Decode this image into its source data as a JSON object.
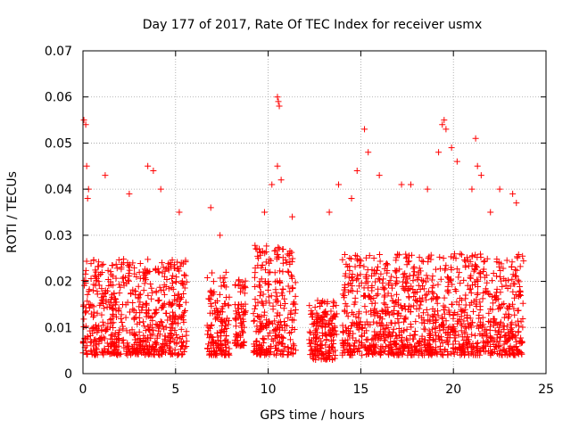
{
  "chart_data": {
    "type": "scatter",
    "title": "Day 177 of 2017, Rate Of TEC Index for receiver usmx",
    "xlabel": "GPS time / hours",
    "ylabel": "ROTI / TECUs",
    "xlim": [
      0,
      25
    ],
    "ylim": [
      0,
      0.07
    ],
    "x_ticks": [
      0,
      5,
      10,
      15,
      20,
      25
    ],
    "y_ticks": [
      0,
      0.01,
      0.02,
      0.03,
      0.04,
      0.05,
      0.06,
      0.07
    ],
    "x_tick_labels": [
      "0",
      "5",
      "10",
      "15",
      "20",
      "25"
    ],
    "y_tick_labels": [
      "0",
      "0.01",
      "0.02",
      "0.03",
      "0.04",
      "0.05",
      "0.06",
      "0.07"
    ],
    "grid": true,
    "marker": "plus",
    "marker_color": "#ff0000",
    "data_segments": [
      {
        "x_start": 0.0,
        "x_end": 5.6,
        "y_min": 0.004,
        "y_max": 0.025
      },
      {
        "x_start": 6.7,
        "x_end": 7.9,
        "y_min": 0.004,
        "y_max": 0.022
      },
      {
        "x_start": 8.2,
        "x_end": 8.8,
        "y_min": 0.006,
        "y_max": 0.021
      },
      {
        "x_start": 9.2,
        "x_end": 11.5,
        "y_min": 0.004,
        "y_max": 0.028
      },
      {
        "x_start": 12.2,
        "x_end": 13.7,
        "y_min": 0.003,
        "y_max": 0.016
      },
      {
        "x_start": 14.0,
        "x_end": 23.8,
        "y_min": 0.004,
        "y_max": 0.026
      }
    ],
    "notable_points": [
      {
        "x": 0.05,
        "y": 0.055
      },
      {
        "x": 0.15,
        "y": 0.054
      },
      {
        "x": 0.2,
        "y": 0.045
      },
      {
        "x": 0.3,
        "y": 0.04
      },
      {
        "x": 0.25,
        "y": 0.038
      },
      {
        "x": 1.2,
        "y": 0.043
      },
      {
        "x": 2.5,
        "y": 0.039
      },
      {
        "x": 3.5,
        "y": 0.045
      },
      {
        "x": 3.8,
        "y": 0.044
      },
      {
        "x": 4.2,
        "y": 0.04
      },
      {
        "x": 5.2,
        "y": 0.035
      },
      {
        "x": 6.9,
        "y": 0.036
      },
      {
        "x": 7.4,
        "y": 0.03
      },
      {
        "x": 9.8,
        "y": 0.035
      },
      {
        "x": 10.2,
        "y": 0.041
      },
      {
        "x": 10.5,
        "y": 0.06
      },
      {
        "x": 10.55,
        "y": 0.059
      },
      {
        "x": 10.6,
        "y": 0.058
      },
      {
        "x": 10.5,
        "y": 0.045
      },
      {
        "x": 10.7,
        "y": 0.042
      },
      {
        "x": 11.3,
        "y": 0.034
      },
      {
        "x": 13.3,
        "y": 0.035
      },
      {
        "x": 13.8,
        "y": 0.041
      },
      {
        "x": 14.5,
        "y": 0.038
      },
      {
        "x": 14.8,
        "y": 0.044
      },
      {
        "x": 15.2,
        "y": 0.053
      },
      {
        "x": 15.4,
        "y": 0.048
      },
      {
        "x": 16.0,
        "y": 0.043
      },
      {
        "x": 17.2,
        "y": 0.041
      },
      {
        "x": 17.7,
        "y": 0.041
      },
      {
        "x": 18.6,
        "y": 0.04
      },
      {
        "x": 19.2,
        "y": 0.048
      },
      {
        "x": 19.4,
        "y": 0.054
      },
      {
        "x": 19.5,
        "y": 0.055
      },
      {
        "x": 19.6,
        "y": 0.053
      },
      {
        "x": 19.9,
        "y": 0.049
      },
      {
        "x": 20.2,
        "y": 0.046
      },
      {
        "x": 21.0,
        "y": 0.04
      },
      {
        "x": 21.2,
        "y": 0.051
      },
      {
        "x": 21.3,
        "y": 0.045
      },
      {
        "x": 21.5,
        "y": 0.043
      },
      {
        "x": 22.0,
        "y": 0.035
      },
      {
        "x": 22.5,
        "y": 0.04
      },
      {
        "x": 23.2,
        "y": 0.039
      },
      {
        "x": 23.4,
        "y": 0.037
      }
    ]
  }
}
